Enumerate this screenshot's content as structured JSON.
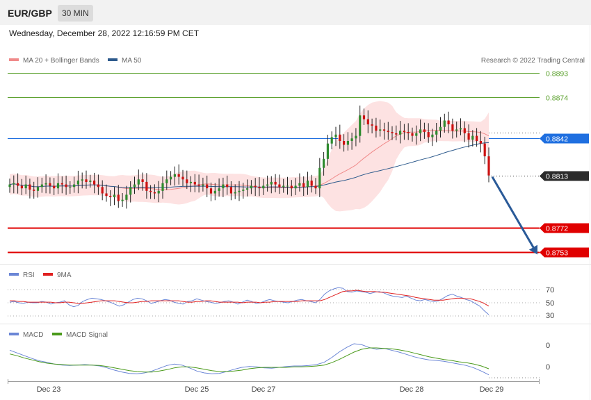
{
  "header": {
    "pair": "EUR/GBP",
    "timeframe": "30 MIN",
    "datetime": "Wednesday, December 28, 2022 12:16:59 PM CET"
  },
  "price_panel": {
    "legend": [
      {
        "label": "MA 20 + Bollinger Bands",
        "color": "#f08a8a"
      },
      {
        "label": "MA 50",
        "color": "#2d5a8c"
      }
    ],
    "credit": "Research © 2022 Trading Central"
  },
  "rsi_panel": {
    "legend": [
      {
        "label": "RSI",
        "color": "#6b86d6"
      },
      {
        "label": "9MA",
        "color": "#e02020"
      }
    ],
    "levels": [
      "70",
      "50",
      "30"
    ]
  },
  "macd_panel": {
    "legend": [
      {
        "label": "MACD",
        "color": "#6b86d6"
      },
      {
        "label": "MACD Signal",
        "color": "#4a9a1a"
      }
    ],
    "levels": [
      "0",
      "0"
    ]
  },
  "x_axis": {
    "ticks": [
      "Dec 23",
      "Dec 25",
      "Dec 27",
      "Dec 28",
      "Dec 29"
    ]
  },
  "chart_data": {
    "type": "candlestick",
    "price_axis": {
      "ylim": [
        0.8745,
        0.8897
      ]
    },
    "levels": [
      {
        "label": "0.8893",
        "value": 0.8893,
        "color": "#5aa02c",
        "style": "resistance"
      },
      {
        "label": "0.8874",
        "value": 0.8874,
        "color": "#5aa02c",
        "style": "resistance"
      },
      {
        "label": "0.8842",
        "value": 0.8842,
        "color": "#1f6fe0",
        "style": "pivot"
      },
      {
        "label": "0.8813",
        "value": 0.8813,
        "color": "#2b2b2b",
        "style": "last-price"
      },
      {
        "label": "0.8772",
        "value": 0.8772,
        "color": "#e00000",
        "style": "support"
      },
      {
        "label": "0.8753",
        "value": 0.8753,
        "color": "#e00000",
        "style": "support"
      }
    ],
    "projection": {
      "from": 0.8812,
      "to": 0.8753
    },
    "closes": [
      0.8806,
      0.8807,
      0.8805,
      0.8803,
      0.8806,
      0.8802,
      0.8801,
      0.8804,
      0.8806,
      0.8807,
      0.8805,
      0.8803,
      0.8807,
      0.8806,
      0.8804,
      0.8804,
      0.8806,
      0.8809,
      0.881,
      0.8808,
      0.8809,
      0.8806,
      0.8804,
      0.8799,
      0.8797,
      0.8796,
      0.8798,
      0.8793,
      0.8794,
      0.8798,
      0.8804,
      0.8806,
      0.881,
      0.8808,
      0.8801,
      0.88,
      0.8799,
      0.8801,
      0.8807,
      0.881,
      0.8812,
      0.8814,
      0.8812,
      0.881,
      0.8807,
      0.8808,
      0.8806,
      0.8805,
      0.8806,
      0.8803,
      0.8799,
      0.8801,
      0.8803,
      0.8806,
      0.8804,
      0.8799,
      0.88,
      0.8801,
      0.8802,
      0.8803,
      0.8805,
      0.8804,
      0.8803,
      0.8805,
      0.8806,
      0.8808,
      0.8806,
      0.8804,
      0.8805,
      0.8805,
      0.8803,
      0.8805,
      0.8807,
      0.8804,
      0.8809,
      0.8805,
      0.8803,
      0.8819,
      0.8826,
      0.8838,
      0.8843,
      0.8845,
      0.884,
      0.8837,
      0.884,
      0.8842,
      0.8844,
      0.886,
      0.8857,
      0.8853,
      0.8852,
      0.8848,
      0.8849,
      0.8848,
      0.8847,
      0.8846,
      0.8845,
      0.8848,
      0.8847,
      0.8846,
      0.8844,
      0.8846,
      0.8849,
      0.8847,
      0.8843,
      0.8845,
      0.8848,
      0.8851,
      0.8856,
      0.8853,
      0.8848,
      0.8849,
      0.885,
      0.8846,
      0.8841,
      0.8844,
      0.884,
      0.8838,
      0.8828,
      0.8813
    ],
    "rsi": [
      51,
      52,
      50,
      49,
      51,
      50,
      50,
      52,
      51,
      48,
      50,
      51,
      53,
      47,
      44,
      46,
      52,
      55,
      57,
      56,
      55,
      53,
      51,
      48,
      45,
      47,
      51,
      55,
      57,
      56,
      53,
      49,
      51,
      53,
      55,
      54,
      51,
      49,
      48,
      52,
      53,
      56,
      54,
      52,
      51,
      49,
      50,
      52,
      53,
      51,
      48,
      51,
      54,
      52,
      49,
      50,
      53,
      55,
      53,
      52,
      51,
      50,
      52,
      54,
      55,
      53,
      52,
      50,
      55,
      63,
      68,
      71,
      73,
      72,
      67,
      66,
      68,
      67,
      66,
      64,
      66,
      67,
      65,
      62,
      60,
      59,
      58,
      60,
      57,
      54,
      53,
      55,
      53,
      52,
      53,
      57,
      61,
      63,
      60,
      58,
      55,
      53,
      49,
      45,
      38,
      32
    ],
    "rsi_ma": [
      53,
      53,
      52,
      52,
      51,
      51,
      51,
      51,
      51,
      51,
      50,
      50,
      51,
      51,
      50,
      49,
      49,
      50,
      51,
      52,
      53,
      53,
      53,
      53,
      52,
      51,
      50,
      50,
      51,
      52,
      52,
      53,
      53,
      53,
      53,
      53,
      53,
      53,
      52,
      51,
      51,
      52,
      52,
      53,
      53,
      52,
      51,
      51,
      51,
      51,
      51,
      50,
      51,
      51,
      51,
      50,
      51,
      51,
      52,
      52,
      52,
      52,
      52,
      52,
      53,
      53,
      53,
      53,
      53,
      55,
      58,
      61,
      64,
      67,
      68,
      68,
      69,
      68,
      67,
      67,
      67,
      66,
      66,
      65,
      64,
      63,
      62,
      61,
      60,
      58,
      57,
      56,
      55,
      54,
      54,
      54,
      55,
      56,
      57,
      57,
      56,
      56,
      54,
      52,
      49,
      45
    ],
    "macd": [
      78,
      72,
      66,
      60,
      55,
      52,
      48,
      46,
      45,
      46,
      47,
      46,
      44,
      40,
      35,
      31,
      28,
      27,
      29,
      33,
      39,
      45,
      48,
      46,
      40,
      33,
      29,
      27,
      28,
      32,
      37,
      41,
      43,
      42,
      40,
      39,
      41,
      43,
      44,
      44,
      45,
      47,
      52,
      62,
      74,
      84,
      92,
      90,
      84,
      80,
      82,
      78,
      74,
      69,
      64,
      60,
      57,
      56,
      54,
      51,
      48,
      45,
      40,
      33,
      25
    ],
    "macd_signal": [
      70,
      66,
      61,
      57,
      53,
      50,
      48,
      47,
      46,
      46,
      46,
      46,
      45,
      43,
      40,
      37,
      34,
      32,
      31,
      31,
      33,
      36,
      40,
      42,
      42,
      40,
      37,
      34,
      32,
      32,
      33,
      35,
      38,
      40,
      41,
      41,
      41,
      41,
      42,
      42,
      43,
      44,
      46,
      51,
      58,
      66,
      74,
      80,
      83,
      83,
      82,
      81,
      79,
      76,
      72,
      68,
      64,
      61,
      58,
      56,
      53,
      51,
      48,
      44,
      38
    ]
  }
}
